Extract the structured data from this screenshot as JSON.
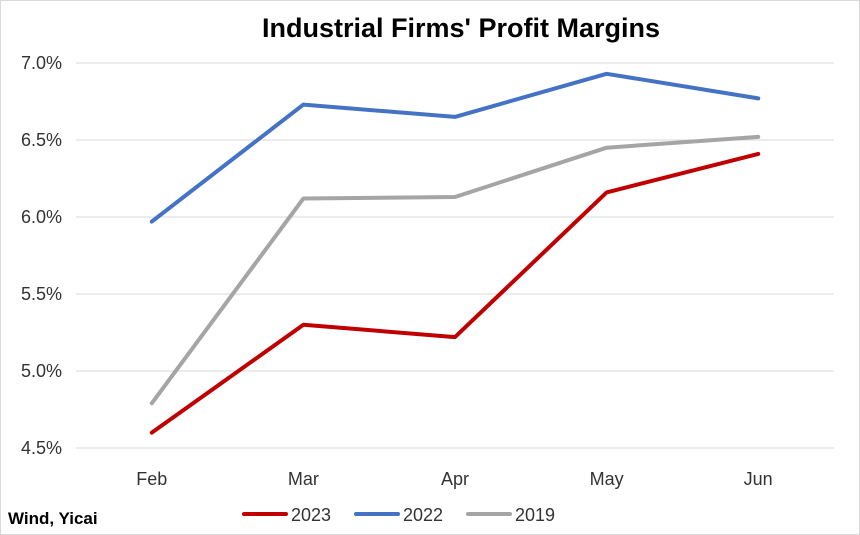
{
  "chart_data": {
    "type": "line",
    "title": "Industrial Firms' Profit Margins",
    "categories": [
      "Feb",
      "Mar",
      "Apr",
      "May",
      "Jun"
    ],
    "series": [
      {
        "name": "2023",
        "color": "#c00000",
        "values": [
          4.6,
          5.3,
          5.22,
          6.16,
          6.41
        ]
      },
      {
        "name": "2022",
        "color": "#4472c4",
        "values": [
          5.97,
          6.73,
          6.65,
          6.93,
          6.77
        ]
      },
      {
        "name": "2019",
        "color": "#a5a5a5",
        "values": [
          4.79,
          6.12,
          6.13,
          6.45,
          6.52
        ]
      }
    ],
    "yticks": [
      "7.0%",
      "6.5%",
      "6.0%",
      "5.5%",
      "5.0%",
      "4.5%"
    ],
    "ylim": [
      4.5,
      7.0
    ],
    "grid": true,
    "legend_position": "bottom",
    "source": "Wind, Yicai"
  }
}
